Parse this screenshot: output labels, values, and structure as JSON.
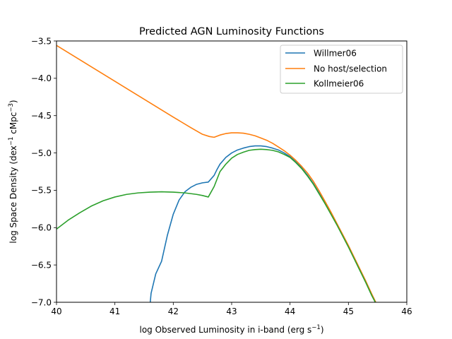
{
  "chart_data": {
    "type": "line",
    "title": "Predicted AGN Luminosity Functions",
    "xlabel": {
      "main": "log Observed Luminosity in i-band (erg s",
      "sup": "−1",
      "close": ")"
    },
    "ylabel": {
      "p1": "log Space Density (dex",
      "sup1": "−1",
      "p2": " cMpc",
      "sup2": "−3",
      "p3": ")"
    },
    "xlim": [
      40,
      46
    ],
    "ylim": [
      -7.0,
      -3.5
    ],
    "xticks": [
      40,
      41,
      42,
      43,
      44,
      45,
      46
    ],
    "xtick_labels": [
      "40",
      "41",
      "42",
      "43",
      "44",
      "45",
      "46"
    ],
    "yticks": [
      -7.0,
      -6.5,
      -6.0,
      -5.5,
      -5.0,
      -4.5,
      -4.0,
      -3.5
    ],
    "ytick_labels": [
      "−7.0",
      "−6.5",
      "−6.0",
      "−5.5",
      "−5.0",
      "−4.5",
      "−4.0",
      "−3.5"
    ],
    "grid": false,
    "legend_position": "top-right",
    "series": [
      {
        "name": "Willmer06",
        "color": "#1f77b4",
        "points": [
          [
            41.6,
            -7.05
          ],
          [
            41.62,
            -6.88
          ],
          [
            41.7,
            -6.62
          ],
          [
            41.8,
            -6.45
          ],
          [
            41.9,
            -6.1
          ],
          [
            42.0,
            -5.82
          ],
          [
            42.1,
            -5.63
          ],
          [
            42.2,
            -5.52
          ],
          [
            42.3,
            -5.46
          ],
          [
            42.4,
            -5.42
          ],
          [
            42.5,
            -5.4
          ],
          [
            42.6,
            -5.39
          ],
          [
            42.7,
            -5.3
          ],
          [
            42.75,
            -5.22
          ],
          [
            42.8,
            -5.15
          ],
          [
            42.9,
            -5.06
          ],
          [
            43.0,
            -5.0
          ],
          [
            43.1,
            -4.96
          ],
          [
            43.2,
            -4.935
          ],
          [
            43.3,
            -4.915
          ],
          [
            43.4,
            -4.905
          ],
          [
            43.5,
            -4.905
          ],
          [
            43.6,
            -4.915
          ],
          [
            43.7,
            -4.935
          ],
          [
            43.8,
            -4.96
          ],
          [
            43.9,
            -5.0
          ],
          [
            44.0,
            -5.05
          ],
          [
            44.1,
            -5.12
          ],
          [
            44.2,
            -5.2
          ],
          [
            44.3,
            -5.3
          ],
          [
            44.4,
            -5.41
          ],
          [
            44.5,
            -5.54
          ],
          [
            44.6,
            -5.67
          ],
          [
            44.7,
            -5.81
          ],
          [
            44.8,
            -5.95
          ],
          [
            44.9,
            -6.1
          ],
          [
            45.0,
            -6.25
          ],
          [
            45.1,
            -6.41
          ],
          [
            45.2,
            -6.57
          ],
          [
            45.3,
            -6.73
          ],
          [
            45.4,
            -6.9
          ],
          [
            45.5,
            -7.06
          ]
        ]
      },
      {
        "name": "No host/selection",
        "color": "#ff7f0e",
        "points": [
          [
            40.0,
            -3.56
          ],
          [
            40.5,
            -3.8
          ],
          [
            41.0,
            -4.04
          ],
          [
            41.5,
            -4.28
          ],
          [
            42.0,
            -4.52
          ],
          [
            42.3,
            -4.66
          ],
          [
            42.5,
            -4.75
          ],
          [
            42.62,
            -4.78
          ],
          [
            42.7,
            -4.79
          ],
          [
            42.8,
            -4.76
          ],
          [
            42.9,
            -4.74
          ],
          [
            43.0,
            -4.73
          ],
          [
            43.1,
            -4.73
          ],
          [
            43.2,
            -4.735
          ],
          [
            43.3,
            -4.75
          ],
          [
            43.4,
            -4.77
          ],
          [
            43.5,
            -4.8
          ],
          [
            43.6,
            -4.83
          ],
          [
            43.7,
            -4.87
          ],
          [
            43.8,
            -4.92
          ],
          [
            43.9,
            -4.97
          ],
          [
            44.0,
            -5.03
          ],
          [
            44.1,
            -5.1
          ],
          [
            44.2,
            -5.18
          ],
          [
            44.3,
            -5.27
          ],
          [
            44.4,
            -5.38
          ],
          [
            44.5,
            -5.51
          ],
          [
            44.6,
            -5.65
          ],
          [
            44.7,
            -5.79
          ],
          [
            44.8,
            -5.94
          ],
          [
            44.9,
            -6.09
          ],
          [
            45.0,
            -6.24
          ],
          [
            45.1,
            -6.4
          ],
          [
            45.2,
            -6.56
          ],
          [
            45.3,
            -6.72
          ],
          [
            45.4,
            -6.89
          ],
          [
            45.5,
            -7.05
          ]
        ]
      },
      {
        "name": "Kollmeier06",
        "color": "#2ca02c",
        "points": [
          [
            40.0,
            -6.02
          ],
          [
            40.2,
            -5.9
          ],
          [
            40.4,
            -5.8
          ],
          [
            40.6,
            -5.71
          ],
          [
            40.8,
            -5.64
          ],
          [
            41.0,
            -5.59
          ],
          [
            41.2,
            -5.555
          ],
          [
            41.4,
            -5.535
          ],
          [
            41.6,
            -5.525
          ],
          [
            41.8,
            -5.52
          ],
          [
            42.0,
            -5.525
          ],
          [
            42.2,
            -5.535
          ],
          [
            42.4,
            -5.555
          ],
          [
            42.5,
            -5.57
          ],
          [
            42.6,
            -5.59
          ],
          [
            42.7,
            -5.45
          ],
          [
            42.8,
            -5.25
          ],
          [
            42.9,
            -5.15
          ],
          [
            43.0,
            -5.07
          ],
          [
            43.1,
            -5.02
          ],
          [
            43.2,
            -4.99
          ],
          [
            43.3,
            -4.965
          ],
          [
            43.4,
            -4.955
          ],
          [
            43.5,
            -4.95
          ],
          [
            43.6,
            -4.955
          ],
          [
            43.7,
            -4.965
          ],
          [
            43.8,
            -4.985
          ],
          [
            43.9,
            -5.02
          ],
          [
            44.0,
            -5.06
          ],
          [
            44.1,
            -5.13
          ],
          [
            44.2,
            -5.21
          ],
          [
            44.3,
            -5.31
          ],
          [
            44.4,
            -5.42
          ],
          [
            44.5,
            -5.55
          ],
          [
            44.6,
            -5.68
          ],
          [
            44.7,
            -5.82
          ],
          [
            44.8,
            -5.96
          ],
          [
            44.9,
            -6.11
          ],
          [
            45.0,
            -6.26
          ],
          [
            45.1,
            -6.42
          ],
          [
            45.2,
            -6.58
          ],
          [
            45.3,
            -6.74
          ],
          [
            45.4,
            -6.91
          ],
          [
            45.5,
            -7.06
          ]
        ]
      }
    ]
  }
}
